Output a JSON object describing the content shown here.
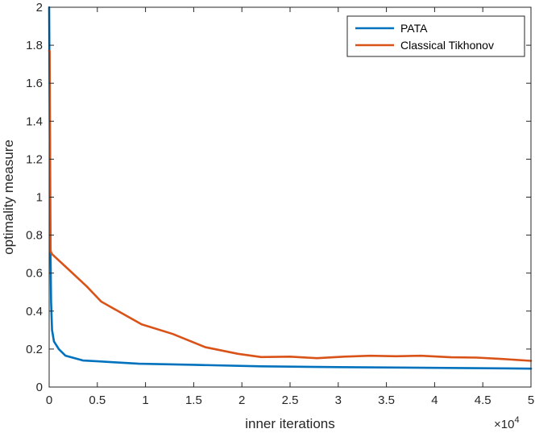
{
  "chart_data": {
    "type": "line",
    "title": "",
    "xlabel": "inner iterations",
    "ylabel": "optimality measure",
    "x_exponent_base": "×10",
    "x_exponent_power": "4",
    "xlim": [
      0,
      50000
    ],
    "ylim": [
      0,
      2
    ],
    "x_ticks": [
      0,
      5000,
      10000,
      15000,
      20000,
      25000,
      30000,
      35000,
      40000,
      45000,
      50000
    ],
    "x_tick_labels": [
      "0",
      "0.5",
      "1",
      "1.5",
      "2",
      "2.5",
      "3",
      "3.5",
      "4",
      "4.5",
      "5"
    ],
    "y_ticks": [
      0,
      0.2,
      0.4,
      0.6,
      0.8,
      1,
      1.2,
      1.4,
      1.6,
      1.8,
      2
    ],
    "y_tick_labels": [
      "0",
      "0.2",
      "0.4",
      "0.6",
      "0.8",
      "1",
      "1.2",
      "1.4",
      "1.6",
      "1.8",
      "2"
    ],
    "grid": false,
    "legend_position": "top-right",
    "series": [
      {
        "name": "PATA",
        "color": "#0072BD",
        "x": [
          0,
          50,
          100,
          200,
          300,
          500,
          1000,
          1700,
          3500,
          9300,
          15000,
          22000,
          30000,
          40000,
          50000
        ],
        "y": [
          2.0,
          1.5,
          0.9,
          0.45,
          0.3,
          0.24,
          0.2,
          0.165,
          0.14,
          0.123,
          0.117,
          0.109,
          0.105,
          0.101,
          0.097
        ]
      },
      {
        "name": "Classical Tikhonov",
        "color": "#D95319",
        "x": [
          0,
          50,
          100,
          150,
          200,
          300,
          2000,
          3900,
          5400,
          9600,
          12800,
          16200,
          19600,
          22000,
          25000,
          27800,
          30600,
          33300,
          36000,
          38600,
          41700,
          44400,
          47000,
          50000
        ],
        "y": [
          1.77,
          1.77,
          1.2,
          0.72,
          0.71,
          0.7,
          0.62,
          0.53,
          0.45,
          0.33,
          0.28,
          0.21,
          0.175,
          0.158,
          0.16,
          0.152,
          0.16,
          0.165,
          0.162,
          0.165,
          0.157,
          0.155,
          0.148,
          0.138
        ]
      }
    ]
  }
}
